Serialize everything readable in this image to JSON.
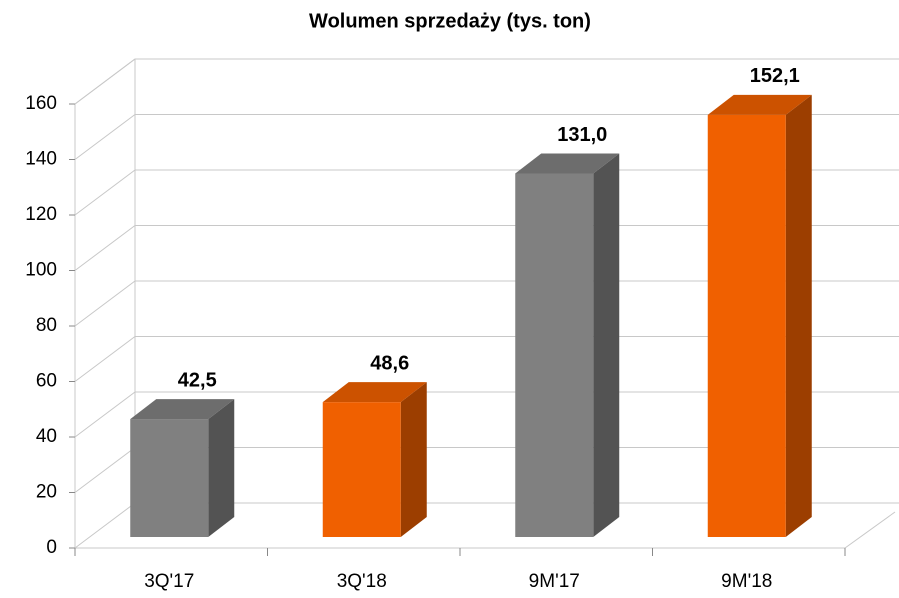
{
  "chart_data": {
    "type": "bar3d",
    "title": "Wolumen sprzedaży  (tys. ton)",
    "categories": [
      "3Q'17",
      "3Q'18",
      "9M'17",
      "9M'18"
    ],
    "values": [
      42.5,
      48.6,
      131.0,
      152.1
    ],
    "value_labels": [
      "42,5",
      "48,6",
      "131,0",
      "152,1"
    ],
    "colors": [
      "#808080",
      "#f06000",
      "#808080",
      "#f06000"
    ],
    "ylim": [
      0,
      160
    ],
    "yticks": [
      0,
      20,
      40,
      60,
      80,
      100,
      120,
      140,
      160
    ],
    "grid": true
  }
}
